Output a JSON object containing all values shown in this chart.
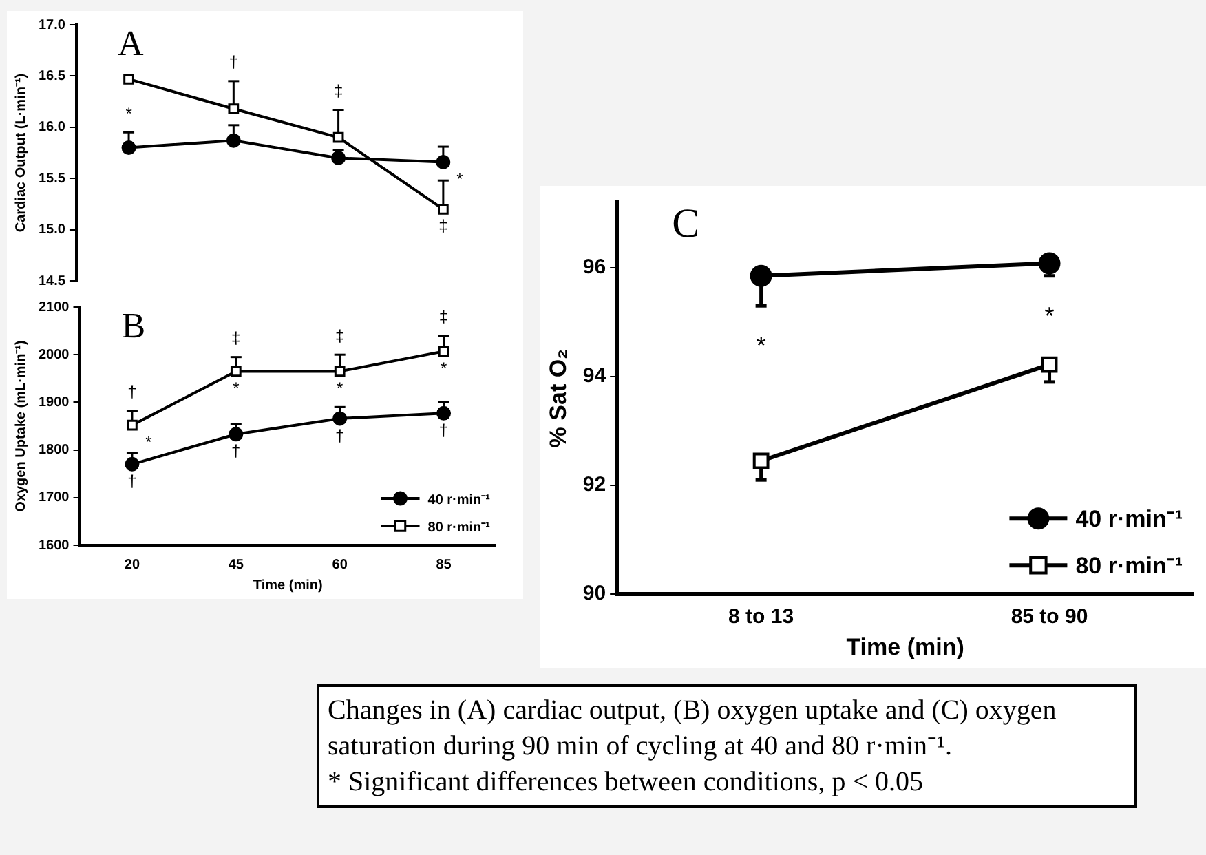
{
  "chart_data": [
    {
      "type": "line",
      "title": "A",
      "ylabel": "Cardiac Output (L·min⁻¹)",
      "categories": [
        "20",
        "45",
        "60",
        "85"
      ],
      "tick_labels": "y",
      "grid": false,
      "legend": false,
      "ylim": [
        14.5,
        17.0
      ],
      "yticks": [
        14.5,
        {
          "value": 15,
          "label": "15.0"
        },
        15.5,
        {
          "value": 16,
          "label": "16.0"
        },
        16.5,
        {
          "value": 17,
          "label": "17.0"
        }
      ],
      "series": [
        {
          "color": "#000000",
          "marker": "circle",
          "values": [
            15.8,
            15.87,
            15.7,
            15.66
          ],
          "errors": [
            [
              15.8,
              15.95
            ],
            [
              15.87,
              16.02
            ],
            [
              15.7,
              15.78
            ],
            [
              15.66,
              15.81
            ]
          ]
        },
        {
          "color": "#000000",
          "marker": "square",
          "values": [
            16.47,
            16.18,
            15.9,
            15.2
          ],
          "errors": [
            null,
            [
              16.18,
              16.45
            ],
            [
              15.9,
              16.17
            ],
            [
              15.2,
              15.48
            ]
          ]
        }
      ],
      "annotations": [
        {
          "text": "*",
          "x": "20",
          "y": 15.95
        },
        {
          "text": "†",
          "x": "45",
          "y": 16.45
        },
        {
          "text": "‡",
          "x": "60",
          "y": 16.17
        },
        {
          "text": "‡",
          "x": "85",
          "y": 15.2
        },
        {
          "text": "*",
          "x": "85",
          "y": 15.66
        }
      ]
    },
    {
      "type": "line",
      "title": "B",
      "ylabel": "Oxygen Uptake (mL·min⁻¹)",
      "xlabel": "Time (min)",
      "categories": [
        "20",
        "45",
        "60",
        "85"
      ],
      "grid": false,
      "legend": "bottom right",
      "ylim": [
        1600,
        2100
      ],
      "yticks": [
        1600,
        1700,
        1800,
        1900,
        2000,
        2100
      ],
      "series": [
        {
          "name": "40 r·min⁻¹",
          "color": "#000000",
          "marker": "circle",
          "values": [
            1770,
            1833,
            1866,
            1877
          ],
          "errors": [
            [
              1770,
              1793
            ],
            [
              1833,
              1855
            ],
            [
              1866,
              1890
            ],
            [
              1877,
              1900
            ]
          ]
        },
        {
          "name": "80 r·min⁻¹",
          "color": "#000000",
          "marker": "square",
          "values": [
            1852,
            1965,
            1965,
            2007
          ],
          "errors": [
            [
              1852,
              1882
            ],
            [
              1965,
              1995
            ],
            [
              1965,
              2000
            ],
            [
              2007,
              2040
            ]
          ]
        }
      ],
      "annotations": [
        {
          "text": "†",
          "x": "20",
          "y": 1882
        },
        {
          "text": "*",
          "x": "20",
          "y": 1852
        },
        {
          "text": "†",
          "x": "20",
          "y": 1770
        },
        {
          "text": "‡",
          "x": "45",
          "y": 1995
        },
        {
          "text": "*",
          "x": "45",
          "y": 1965
        },
        {
          "text": "†",
          "x": "45",
          "y": 1833
        },
        {
          "text": "‡",
          "x": "60",
          "y": 2000
        },
        {
          "text": "*",
          "x": "60",
          "y": 1965
        },
        {
          "text": "†",
          "x": "60",
          "y": 1866
        },
        {
          "text": "‡",
          "x": "85",
          "y": 2040
        },
        {
          "text": "*",
          "x": "85",
          "y": 2007
        },
        {
          "text": "†",
          "x": "85",
          "y": 1877
        }
      ]
    },
    {
      "type": "line",
      "title": "C",
      "ylabel": "% Sat O₂",
      "xlabel": "Time (min)",
      "categories": [
        "8 to 13",
        "85 to 90"
      ],
      "grid": false,
      "legend": "bottom right",
      "ylim": [
        90,
        97.2
      ],
      "yticks": [
        90,
        92,
        94,
        96
      ],
      "series": [
        {
          "name": "40 r·min⁻¹",
          "color": "#000000",
          "marker": "circle",
          "values": [
            95.85,
            96.08
          ],
          "errors": [
            [
              95.3,
              95.85
            ],
            [
              95.85,
              96.08
            ]
          ]
        },
        {
          "name": "80 r·min⁻¹",
          "color": "#000000",
          "marker": "square",
          "values": [
            92.45,
            94.22
          ],
          "errors": [
            [
              92.1,
              92.45
            ],
            [
              93.9,
              94.22
            ]
          ]
        }
      ],
      "annotations": [
        {
          "text": "*",
          "x": "8 to 13",
          "y": 95.3
        },
        {
          "text": "*",
          "x": "85 to 90",
          "y": 95.85
        }
      ]
    },
    {
      "type": "other",
      "annotations": [
        "Changes in (A) cardiac output, (B) oxygen uptake and (C) oxygen saturation during 90 min of cycling at 40 and 80 r·min⁻¹.",
        "* Significant differences between conditions, p < 0.05"
      ]
    }
  ]
}
